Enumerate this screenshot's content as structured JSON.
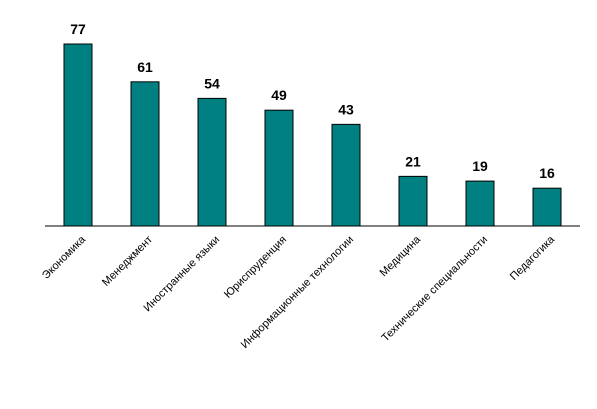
{
  "chart_data": {
    "type": "bar",
    "title": "",
    "xlabel": "",
    "ylabel": "",
    "categories": [
      "Экономика",
      "Менеджмент",
      "Иностранные языки",
      "Юриспруденция",
      "Информационные технологии",
      "Медицина",
      "Технические специальности",
      "Педагогика"
    ],
    "values": [
      77,
      61,
      54,
      49,
      43,
      21,
      19,
      16
    ],
    "data_labels": [
      "77",
      "61",
      "54",
      "49",
      "43",
      "21",
      "19",
      "16"
    ],
    "ylim": [
      0,
      77
    ],
    "grid": false,
    "legend": "none",
    "bar_color": "#008080"
  }
}
